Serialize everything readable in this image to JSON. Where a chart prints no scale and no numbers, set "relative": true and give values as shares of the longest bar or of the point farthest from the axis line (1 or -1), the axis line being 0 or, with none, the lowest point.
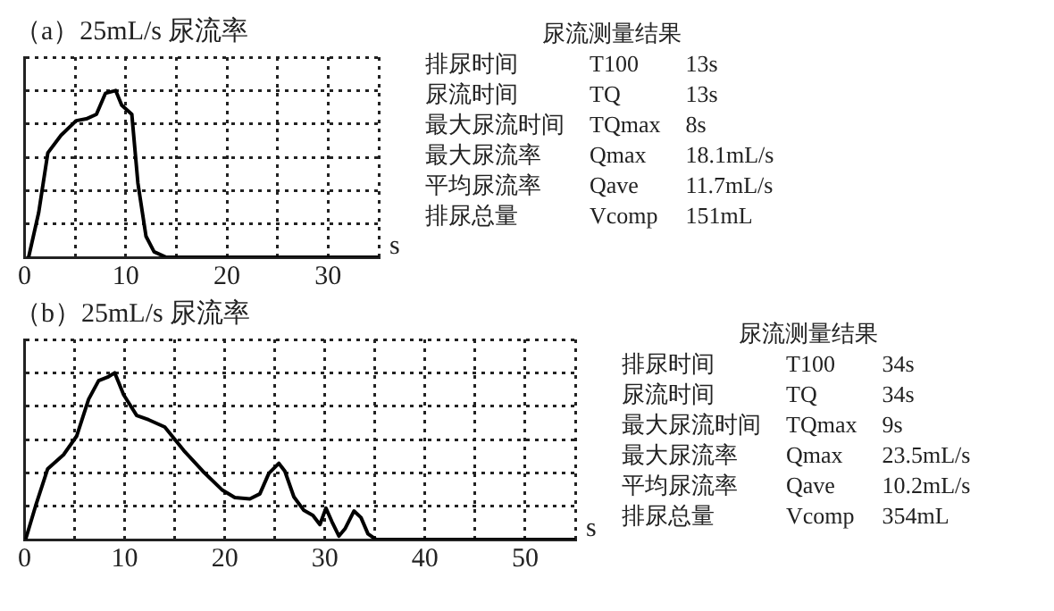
{
  "chart_data": [
    {
      "type": "line",
      "title": "（a）25mL/s 尿流率",
      "xlabel": "s",
      "color": "#000000",
      "relative": true,
      "x": [
        0.4,
        1.4,
        2.3,
        3.6,
        5.1,
        6.1,
        7.1,
        8,
        9,
        9.6,
        10.6,
        11.2,
        12,
        12.8,
        14,
        35
      ],
      "values": [
        0,
        0.269,
        0.626,
        0.731,
        0.819,
        0.83,
        0.857,
        0.984,
        1,
        0.912,
        0.857,
        0.445,
        0.126,
        0.033,
        0,
        0
      ],
      "xlim": [
        0,
        35
      ],
      "xticks": [
        0,
        {
          "value": 5,
          "label": null
        },
        10,
        {
          "value": 15,
          "label": null
        },
        20,
        {
          "value": 25,
          "label": null
        },
        30,
        {
          "value": 35,
          "label": null
        }
      ],
      "grid": true,
      "tick_labels": "x",
      "line_style": "solid",
      "marker": "none",
      "annotations": [
        "尿流测量结果",
        "排尿时间",
        "T100",
        "13s",
        "尿流时间",
        "TQ",
        "13s",
        "最大尿流时间",
        "TQmax",
        "8s",
        "最大尿流率",
        "Qmax",
        "18.1mL/s",
        "平均尿流率",
        "Qave",
        "11.7mL/s",
        "排尿总量",
        "Vcomp",
        "151mL"
      ]
    },
    {
      "type": "line",
      "title": "（b）25mL/s 尿流率",
      "xlabel": "s",
      "color": "#000000",
      "relative": true,
      "x": [
        0.1,
        1.1,
        2.3,
        3.9,
        5.2,
        6.4,
        7.4,
        8.3,
        9,
        9.9,
        11.2,
        12.4,
        14,
        15.9,
        17.8,
        19.7,
        21,
        22.5,
        23.5,
        24.4,
        25.4,
        26,
        26.9,
        27.9,
        28.8,
        29.5,
        30.1,
        30.7,
        31.4,
        32,
        32.9,
        33.6,
        34.3,
        35.1,
        55
      ],
      "values": [
        0,
        0.201,
        0.423,
        0.509,
        0.62,
        0.842,
        0.953,
        0.974,
        1,
        0.868,
        0.744,
        0.718,
        0.675,
        0.534,
        0.41,
        0.299,
        0.252,
        0.244,
        0.274,
        0.397,
        0.457,
        0.41,
        0.256,
        0.175,
        0.145,
        0.09,
        0.188,
        0.107,
        0.021,
        0.064,
        0.171,
        0.132,
        0.034,
        0,
        0
      ],
      "xlim": [
        0,
        55
      ],
      "xticks": [
        0,
        {
          "value": 5,
          "label": null
        },
        10,
        {
          "value": 15,
          "label": null
        },
        20,
        {
          "value": 25,
          "label": null
        },
        30,
        {
          "value": 35,
          "label": null
        },
        40,
        {
          "value": 45,
          "label": null
        },
        50,
        {
          "value": 55,
          "label": null
        }
      ],
      "grid": true,
      "tick_labels": "x",
      "line_style": "solid",
      "marker": "none",
      "annotations": [
        "尿流测量结果",
        "排尿时间",
        "T100",
        "34s",
        "尿流时间",
        "TQ",
        "34s",
        "最大尿流时间",
        "TQmax",
        "9s",
        "最大尿流率",
        "Qmax",
        "23.5mL/s",
        "平均尿流率",
        "Qave",
        "10.2mL/s",
        "排尿总量",
        "Vcomp",
        "354mL"
      ]
    }
  ]
}
